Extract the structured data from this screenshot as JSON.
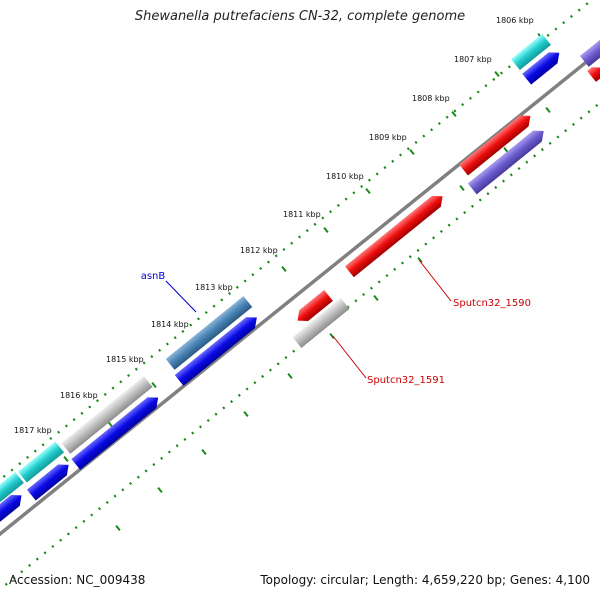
{
  "title": "Shewanella putrefaciens CN-32, complete genome",
  "footer": {
    "accession": "Accession: NC_009438",
    "stats": "Topology: circular; Length: 4,659,220 bp; Genes: 4,100"
  },
  "kbp_labels": [
    "1806 kbp",
    "1807 kbp",
    "1808 kbp",
    "1809 kbp",
    "1810 kbp",
    "1811 kbp",
    "1812 kbp",
    "1813 kbp",
    "1814 kbp",
    "1815 kbp",
    "1816 kbp",
    "1817 kbp"
  ],
  "gene_labels": {
    "asnB": "asnB",
    "sputcn1590": "Sputcn32_1590",
    "sputcn1591": "Sputcn32_1591"
  },
  "colors": {
    "backbone": "#777777",
    "dots": "#1a8a1a",
    "cyan": "#2ad0d0",
    "blue": "#1010e0",
    "red": "#ee1010",
    "lavender": "#6a5acd",
    "steel": "#4682b4",
    "gray": "#b8b8b8",
    "label_blue": "#0000cc",
    "label_red": "#cc0000"
  }
}
